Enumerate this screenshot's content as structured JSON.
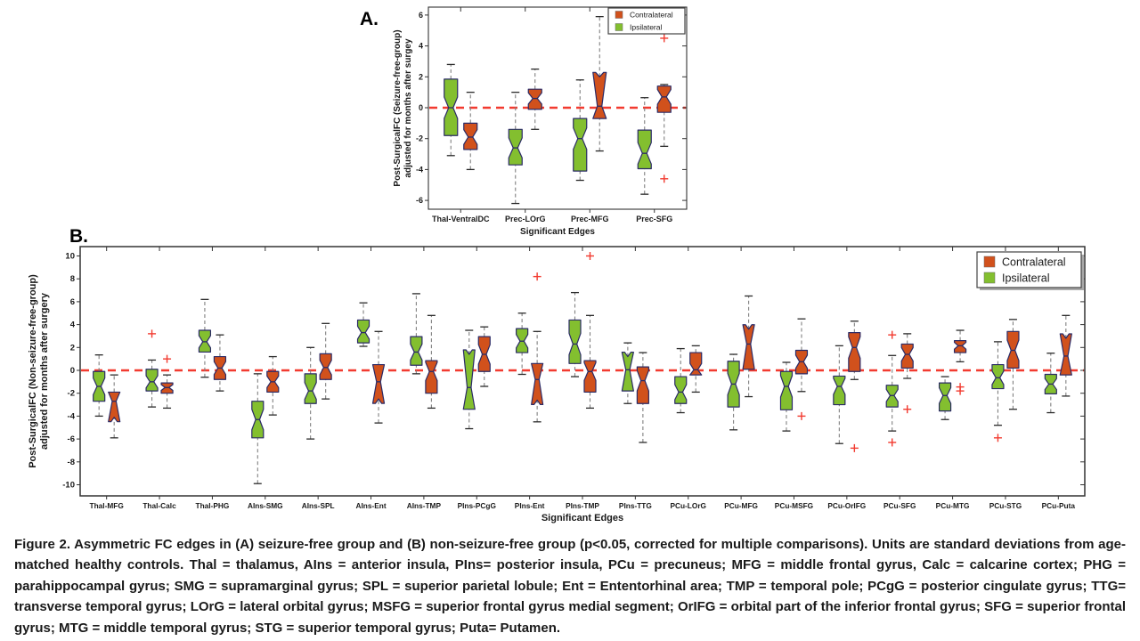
{
  "figure": {
    "panel_a_label": "A.",
    "panel_b_label": "B.",
    "caption": "Figure 2. Asymmetric FC edges in (A) seizure-free group and (B) non-seizure-free group (p<0.05, corrected for multiple comparisons). Units are standard deviations from age-matched healthy controls. Thal = thalamus, AIns = anterior insula, PIns= posterior insula, PCu = precuneus; MFG = middle frontal gyrus, Calc = calcarine cortex; PHG = parahippocampal gyrus; SMG = supramarginal gyrus; SPL = superior parietal lobule; Ent = Ententorhinal area; TMP = temporal pole; PCgG = posterior cingulate gyrus; TTG= transverse temporal gyrus; LOrG = lateral orbital gyrus; MSFG = superior frontal gyrus medial segment; OrIFG = orbital part of the inferior frontal gyrus; SFG = superior frontal gyrus; MTG = middle temporal gyrus; STG = superior temporal gyrus; Puta= Putamen."
  },
  "legend": {
    "contralateral": "Contralateral",
    "ipsilateral": "Ipsilateral"
  },
  "colors": {
    "contralateral": "#D1511C",
    "ipsilateral": "#83BF2F",
    "box_edge": "#2A2A66",
    "zero_line": "#F23B30",
    "outlier": "#F23B30",
    "whisker": "#808080",
    "cap": "#2a2a2a",
    "spine": "#333333",
    "text": "#1a1a1a"
  },
  "chart_data": [
    {
      "id": "A",
      "type": "boxplot-notched",
      "ylabel_line1": "Post-SurgicalFC (Seizure-free-group)",
      "ylabel_line2": "adjusted for months after surgey",
      "xlabel": "Significant Edges",
      "ylim": [
        -6.6,
        6.5
      ],
      "yticks": [
        -6,
        -4,
        -2,
        0,
        2,
        4,
        6
      ],
      "zero_line": 0,
      "grid": false,
      "legend_position": "top-right-inside",
      "categories": [
        "Thal-VentralDC",
        "Prec-LOrG",
        "Prec-MFG",
        "Prec-SFG"
      ],
      "series": [
        {
          "name": "Ipsilateral",
          "boxes": [
            {
              "lo": -3.1,
              "q1": -1.8,
              "med": 0.0,
              "q3": 1.85,
              "hi": 2.8,
              "outliers": []
            },
            {
              "lo": -6.2,
              "q1": -3.7,
              "med": -2.6,
              "q3": -1.4,
              "hi": 1.0,
              "outliers": []
            },
            {
              "lo": -4.7,
              "q1": -4.1,
              "med": -2.0,
              "q3": -0.7,
              "hi": 1.8,
              "outliers": []
            },
            {
              "lo": -5.6,
              "q1": -3.95,
              "med": -2.95,
              "q3": -1.45,
              "hi": 0.65,
              "outliers": []
            }
          ]
        },
        {
          "name": "Contralateral",
          "boxes": [
            {
              "lo": -4.0,
              "q1": -2.7,
              "med": -1.9,
              "q3": -1.0,
              "hi": 1.0,
              "outliers": []
            },
            {
              "lo": -1.4,
              "q1": -0.1,
              "med": 0.6,
              "q3": 1.2,
              "hi": 2.5,
              "outliers": []
            },
            {
              "lo": -2.8,
              "q1": -0.7,
              "med": 0.1,
              "q3": 2.0,
              "hi": 5.9,
              "flare": "top",
              "outliers": []
            },
            {
              "lo": -2.5,
              "q1": -0.3,
              "med": 0.7,
              "q3": 1.4,
              "hi": 1.5,
              "outliers": [
                4.5,
                -4.6
              ]
            }
          ]
        }
      ]
    },
    {
      "id": "B",
      "type": "boxplot-notched",
      "ylabel_line1": "Post-SurgicalFC (Non-seizure-free-group)",
      "ylabel_line2": "adjusted for months after surgery",
      "xlabel": "Significant Edges",
      "ylim": [
        -10.9,
        10.8
      ],
      "yticks": [
        -10,
        -8,
        -6,
        -4,
        -2,
        0,
        2,
        4,
        6,
        8,
        10
      ],
      "zero_line": 0,
      "grid": false,
      "legend_position": "top-right-inside",
      "categories": [
        "Thal-MFG",
        "Thal-Calc",
        "Thal-PHG",
        "AIns-SMG",
        "AIns-SPL",
        "AIns-Ent",
        "AIns-TMP",
        "PIns-PCgG",
        "PIns-Ent",
        "PIns-TMP",
        "PIns-TTG",
        "PCu-LOrG",
        "PCu-MFG",
        "PCu-MSFG",
        "PCu-OrIFG",
        "PCu-SFG",
        "PCu-MTG",
        "PCu-STG",
        "PCu-Puta"
      ],
      "series": [
        {
          "name": "Ipsilateral",
          "boxes": [
            {
              "lo": -4.0,
              "q1": -2.7,
              "med": -1.4,
              "q3": -0.1,
              "hi": 1.35,
              "outliers": []
            },
            {
              "lo": -3.2,
              "q1": -1.8,
              "med": -1.0,
              "q3": 0.1,
              "hi": 0.9,
              "outliers": [
                3.2
              ]
            },
            {
              "lo": -0.6,
              "q1": 1.6,
              "med": 2.5,
              "q3": 3.5,
              "hi": 6.2,
              "outliers": []
            },
            {
              "lo": -9.9,
              "q1": -5.9,
              "med": -4.3,
              "q3": -2.7,
              "hi": -0.3,
              "outliers": []
            },
            {
              "lo": -6.0,
              "q1": -2.9,
              "med": -1.8,
              "q3": -0.3,
              "hi": 2.0,
              "outliers": []
            },
            {
              "lo": 2.1,
              "q1": 2.4,
              "med": 3.3,
              "q3": 4.4,
              "hi": 5.9,
              "outliers": []
            },
            {
              "lo": -0.3,
              "q1": 0.45,
              "med": 1.6,
              "q3": 2.95,
              "hi": 6.7,
              "outliers": []
            },
            {
              "lo": -5.1,
              "q1": -3.4,
              "med": -1.5,
              "q3": 1.4,
              "hi": 3.5,
              "flare": "top",
              "outliers": []
            },
            {
              "lo": -0.35,
              "q1": 1.55,
              "med": 2.55,
              "q3": 3.65,
              "hi": 5.0,
              "outliers": []
            },
            {
              "lo": -0.55,
              "q1": 0.6,
              "med": 2.3,
              "q3": 4.4,
              "hi": 6.8,
              "outliers": []
            },
            {
              "lo": -2.9,
              "q1": -1.8,
              "med": 0.05,
              "q3": 1.2,
              "hi": 2.4,
              "flare": "top",
              "outliers": []
            },
            {
              "lo": -3.7,
              "q1": -2.9,
              "med": -1.9,
              "q3": -0.55,
              "hi": 1.9,
              "outliers": []
            },
            {
              "lo": -5.2,
              "q1": -3.2,
              "med": -1.2,
              "q3": 0.8,
              "hi": 1.4,
              "outliers": []
            },
            {
              "lo": -5.3,
              "q1": -3.45,
              "med": -1.4,
              "q3": -0.1,
              "hi": 0.7,
              "outliers": []
            },
            {
              "lo": -6.4,
              "q1": -3.0,
              "med": -1.4,
              "q3": -0.5,
              "hi": 2.15,
              "outliers": []
            },
            {
              "lo": -5.3,
              "q1": -3.2,
              "med": -2.2,
              "q3": -1.3,
              "hi": 1.3,
              "outliers": [
                3.1,
                -6.3
              ]
            },
            {
              "lo": -4.3,
              "q1": -3.55,
              "med": -2.2,
              "q3": -1.1,
              "hi": -0.55,
              "outliers": []
            },
            {
              "lo": -4.8,
              "q1": -1.6,
              "med": -0.65,
              "q3": 0.5,
              "hi": 2.5,
              "outliers": [
                -5.9
              ]
            },
            {
              "lo": -3.7,
              "q1": -2.05,
              "med": -1.2,
              "q3": -0.35,
              "hi": 1.5,
              "outliers": []
            }
          ]
        },
        {
          "name": "Contralateral",
          "boxes": [
            {
              "lo": -5.9,
              "q1": -4.1,
              "med": -2.7,
              "q3": -1.9,
              "hi": -0.4,
              "flare": "bottom",
              "outliers": []
            },
            {
              "lo": -3.3,
              "q1": -2.0,
              "med": -1.5,
              "q3": -1.1,
              "hi": -0.4,
              "outliers": [
                1.0
              ]
            },
            {
              "lo": -1.8,
              "q1": -0.8,
              "med": 0.2,
              "q3": 1.2,
              "hi": 3.1,
              "outliers": []
            },
            {
              "lo": -3.9,
              "q1": -1.9,
              "med": -1.0,
              "q3": -0.1,
              "hi": 1.2,
              "outliers": []
            },
            {
              "lo": -2.5,
              "q1": -0.8,
              "med": 0.25,
              "q3": 1.45,
              "hi": 4.1,
              "outliers": []
            },
            {
              "lo": -4.6,
              "q1": -2.5,
              "med": -1.0,
              "q3": 0.5,
              "hi": 3.4,
              "flare": "bottom",
              "outliers": []
            },
            {
              "lo": -3.3,
              "q1": -2.0,
              "med": -0.1,
              "q3": 0.85,
              "hi": 4.8,
              "outliers": []
            },
            {
              "lo": -1.4,
              "q1": -0.1,
              "med": 1.4,
              "q3": 2.95,
              "hi": 3.8,
              "outliers": []
            },
            {
              "lo": -4.5,
              "q1": -2.6,
              "med": -0.8,
              "q3": 0.6,
              "hi": 3.4,
              "flare": "bottom",
              "outliers": [
                8.2
              ]
            },
            {
              "lo": -3.3,
              "q1": -1.9,
              "med": -0.1,
              "q3": 0.85,
              "hi": 4.8,
              "outliers": [
                10.0
              ]
            },
            {
              "lo": -6.3,
              "q1": -2.9,
              "med": -0.9,
              "q3": 0.3,
              "hi": 1.55,
              "outliers": []
            },
            {
              "lo": -1.9,
              "q1": -0.4,
              "med": 0.05,
              "q3": 1.55,
              "hi": 2.15,
              "outliers": []
            },
            {
              "lo": -2.3,
              "q1": 0.1,
              "med": 2.3,
              "q3": 3.6,
              "hi": 6.5,
              "flare": "top",
              "outliers": []
            },
            {
              "lo": -1.85,
              "q1": -0.3,
              "med": 0.75,
              "q3": 1.75,
              "hi": 4.5,
              "outliers": [
                -4.0
              ]
            },
            {
              "lo": -0.8,
              "q1": -0.1,
              "med": 2.0,
              "q3": 3.3,
              "hi": 4.3,
              "outliers": [
                -6.8
              ]
            },
            {
              "lo": -0.7,
              "q1": 0.2,
              "med": 1.4,
              "q3": 2.3,
              "hi": 3.2,
              "outliers": [
                -3.4
              ]
            },
            {
              "lo": 0.75,
              "q1": 1.55,
              "med": 2.15,
              "q3": 2.6,
              "hi": 3.5,
              "outliers": [
                -1.45,
                -1.8
              ]
            },
            {
              "lo": -3.4,
              "q1": 0.2,
              "med": 1.75,
              "q3": 3.4,
              "hi": 4.45,
              "outliers": []
            },
            {
              "lo": -2.25,
              "q1": -0.4,
              "med": 1.25,
              "q3": 2.8,
              "hi": 4.8,
              "flare": "top",
              "outliers": []
            }
          ]
        }
      ]
    }
  ]
}
